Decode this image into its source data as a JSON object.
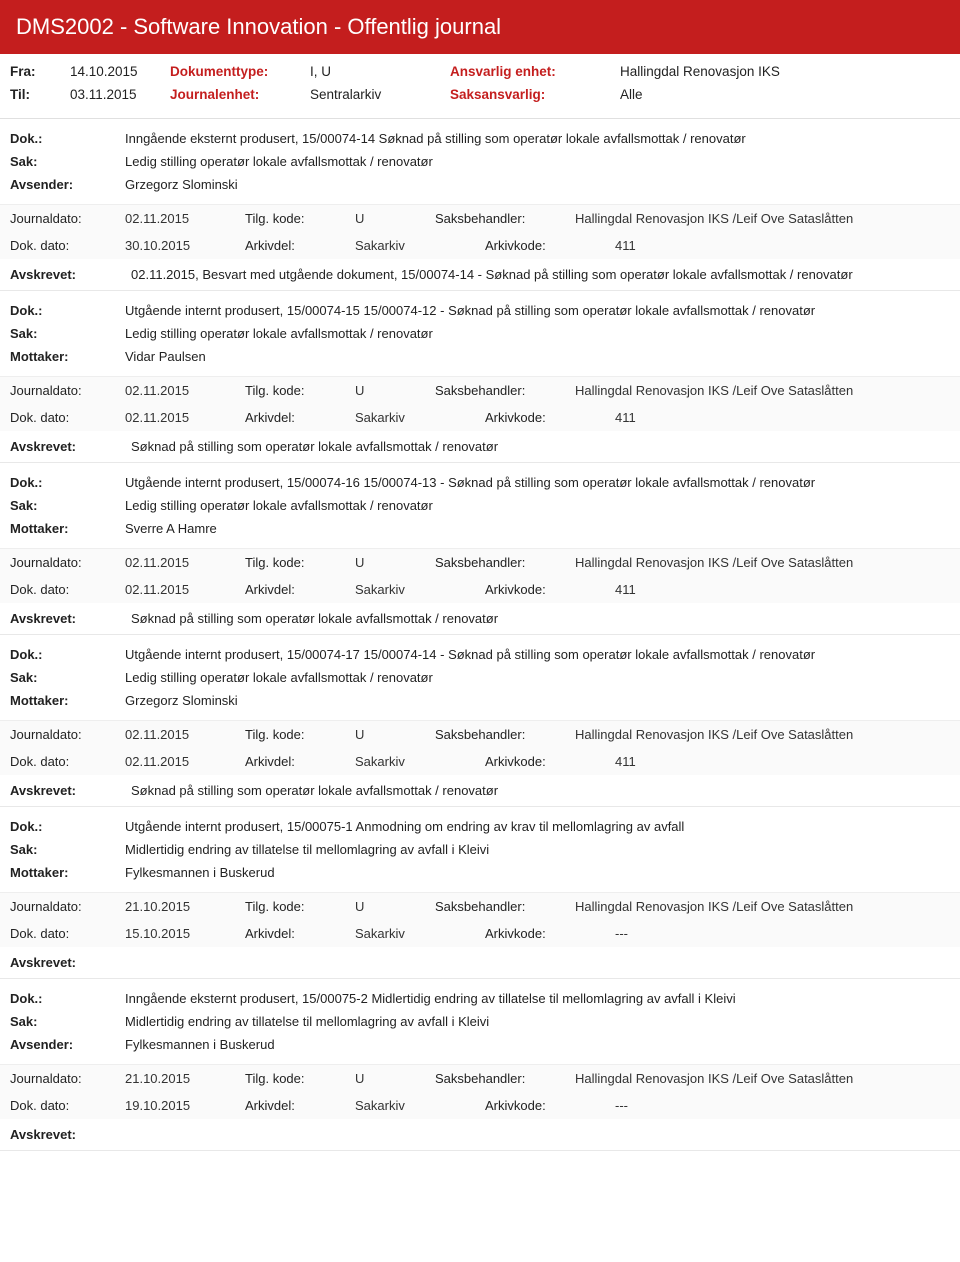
{
  "header": {
    "title": "DMS2002 - Software Innovation - Offentlig journal"
  },
  "meta": {
    "fra_label": "Fra:",
    "fra_value": "14.10.2015",
    "til_label": "Til:",
    "til_value": "03.11.2015",
    "dokumenttype_label": "Dokumenttype:",
    "dokumenttype_value": "I, U",
    "journalenhet_label": "Journalenhet:",
    "journalenhet_value": "Sentralarkiv",
    "ansvarlig_label": "Ansvarlig enhet:",
    "ansvarlig_value": "Hallingdal Renovasjon IKS",
    "saksansvarlig_label": "Saksansvarlig:",
    "saksansvarlig_value": "Alle"
  },
  "labels": {
    "dok": "Dok.:",
    "sak": "Sak:",
    "avsender": "Avsender:",
    "mottaker": "Mottaker:",
    "journaldato": "Journaldato:",
    "tilgkode": "Tilg. kode:",
    "saksbehandler": "Saksbehandler:",
    "dokdato": "Dok. dato:",
    "arkivdel": "Arkivdel:",
    "arkivkode": "Arkivkode:",
    "avskrevet": "Avskrevet:"
  },
  "entries": [
    {
      "dok": "Inngående eksternt produsert, 15/00074-14 Søknad på stilling som operatør lokale avfallsmottak / renovatør",
      "sak": "Ledig stilling operatør lokale avfallsmottak / renovatør",
      "party_label": "Avsender:",
      "party": "Grzegorz Slominski",
      "journaldato": "02.11.2015",
      "tilgkode": "U",
      "saksbehandler": "Hallingdal Renovasjon IKS /Leif Ove Sataslåtten",
      "dokdato": "30.10.2015",
      "arkivdel": "Sakarkiv",
      "arkivkode": "411",
      "avskrevet": "02.11.2015, Besvart med utgående dokument, 15/00074-14 - Søknad på stilling som operatør lokale avfallsmottak / renovatør"
    },
    {
      "dok": "Utgående internt produsert, 15/00074-15 15/00074-12 - Søknad på stilling som operatør lokale avfallsmottak / renovatør",
      "sak": "Ledig stilling operatør lokale avfallsmottak / renovatør",
      "party_label": "Mottaker:",
      "party": "Vidar Paulsen",
      "journaldato": "02.11.2015",
      "tilgkode": "U",
      "saksbehandler": "Hallingdal Renovasjon IKS /Leif Ove Sataslåtten",
      "dokdato": "02.11.2015",
      "arkivdel": "Sakarkiv",
      "arkivkode": "411",
      "avskrevet": "Søknad på stilling som operatør lokale avfallsmottak / renovatør"
    },
    {
      "dok": "Utgående internt produsert, 15/00074-16 15/00074-13 - Søknad på stilling som operatør lokale avfallsmottak / renovatør",
      "sak": "Ledig stilling operatør lokale avfallsmottak / renovatør",
      "party_label": "Mottaker:",
      "party": "Sverre A Hamre",
      "journaldato": "02.11.2015",
      "tilgkode": "U",
      "saksbehandler": "Hallingdal Renovasjon IKS /Leif Ove Sataslåtten",
      "dokdato": "02.11.2015",
      "arkivdel": "Sakarkiv",
      "arkivkode": "411",
      "avskrevet": "Søknad på stilling som operatør lokale avfallsmottak / renovatør"
    },
    {
      "dok": "Utgående internt produsert, 15/00074-17 15/00074-14 - Søknad på stilling som operatør lokale avfallsmottak / renovatør",
      "sak": "Ledig stilling operatør lokale avfallsmottak / renovatør",
      "party_label": "Mottaker:",
      "party": "Grzegorz Slominski",
      "journaldato": "02.11.2015",
      "tilgkode": "U",
      "saksbehandler": "Hallingdal Renovasjon IKS /Leif Ove Sataslåtten",
      "dokdato": "02.11.2015",
      "arkivdel": "Sakarkiv",
      "arkivkode": "411",
      "avskrevet": "Søknad på stilling som operatør lokale avfallsmottak / renovatør"
    },
    {
      "dok": "Utgående internt produsert, 15/00075-1 Anmodning om endring av krav til mellomlagring av avfall",
      "sak": "Midlertidig endring av tillatelse til mellomlagring av avfall i Kleivi",
      "party_label": "Mottaker:",
      "party": "Fylkesmannen i Buskerud",
      "journaldato": "21.10.2015",
      "tilgkode": "U",
      "saksbehandler": "Hallingdal Renovasjon IKS /Leif Ove Sataslåtten",
      "dokdato": "15.10.2015",
      "arkivdel": "Sakarkiv",
      "arkivkode": "---",
      "avskrevet": ""
    },
    {
      "dok": "Inngående eksternt produsert, 15/00075-2 Midlertidig endring av tillatelse til mellomlagring av avfall i Kleivi",
      "sak": "Midlertidig endring av tillatelse til mellomlagring av avfall i Kleivi",
      "party_label": "Avsender:",
      "party": "Fylkesmannen i Buskerud",
      "journaldato": "21.10.2015",
      "tilgkode": "U",
      "saksbehandler": "Hallingdal Renovasjon IKS /Leif Ove Sataslåtten",
      "dokdato": "19.10.2015",
      "arkivdel": "Sakarkiv",
      "arkivkode": "---",
      "avskrevet": ""
    }
  ]
}
